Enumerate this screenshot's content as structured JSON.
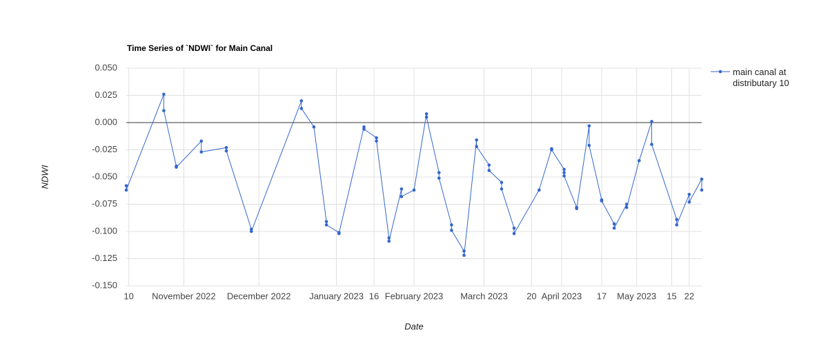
{
  "chart_data": {
    "type": "line",
    "title": "Time Series of `NDWI` for Main Canal",
    "x_label": "Date",
    "y_label": "NDWI",
    "x": [
      "2022-10-09",
      "2022-10-09",
      "2022-10-24",
      "2022-10-24",
      "2022-10-29",
      "2022-10-29",
      "2022-11-08",
      "2022-11-08",
      "2022-11-18",
      "2022-11-18",
      "2022-11-28",
      "2022-11-28",
      "2022-12-18",
      "2022-12-18",
      "2022-12-23",
      "2022-12-28",
      "2022-12-28",
      "2023-01-02",
      "2023-01-02",
      "2023-01-12",
      "2023-01-12",
      "2023-01-17",
      "2023-01-17",
      "2023-01-22",
      "2023-01-22",
      "2023-01-27",
      "2023-01-27",
      "2023-02-01",
      "2023-02-06",
      "2023-02-06",
      "2023-02-11",
      "2023-02-11",
      "2023-02-16",
      "2023-02-16",
      "2023-02-21",
      "2023-02-21",
      "2023-02-26",
      "2023-02-26",
      "2023-03-03",
      "2023-03-03",
      "2023-03-08",
      "2023-03-08",
      "2023-03-13",
      "2023-03-13",
      "2023-03-23",
      "2023-03-28",
      "2023-03-28",
      "2023-04-02",
      "2023-04-02",
      "2023-04-02",
      "2023-04-07",
      "2023-04-07",
      "2023-04-12",
      "2023-04-12",
      "2023-04-17",
      "2023-04-17",
      "2023-04-22",
      "2023-04-22",
      "2023-04-27",
      "2023-04-27",
      "2023-05-02",
      "2023-05-07",
      "2023-05-07",
      "2023-05-17",
      "2023-05-17",
      "2023-05-22",
      "2023-05-22",
      "2023-05-27",
      "2023-05-27"
    ],
    "series": [
      {
        "name": "main canal at distributary 10",
        "color": "#3366cc",
        "values": [
          -0.058,
          -0.062,
          0.026,
          0.011,
          -0.04,
          -0.041,
          -0.017,
          -0.027,
          -0.023,
          -0.026,
          -0.098,
          -0.1,
          0.02,
          0.013,
          -0.004,
          -0.091,
          -0.094,
          -0.101,
          -0.102,
          -0.004,
          -0.006,
          -0.014,
          -0.017,
          -0.106,
          -0.109,
          -0.061,
          -0.068,
          -0.062,
          0.008,
          0.005,
          -0.046,
          -0.051,
          -0.094,
          -0.099,
          -0.118,
          -0.122,
          -0.016,
          -0.022,
          -0.039,
          -0.044,
          -0.055,
          -0.061,
          -0.097,
          -0.102,
          -0.062,
          -0.024,
          -0.025,
          -0.043,
          -0.046,
          -0.049,
          -0.078,
          -0.079,
          -0.003,
          -0.021,
          -0.071,
          -0.072,
          -0.093,
          -0.097,
          -0.075,
          -0.078,
          -0.035,
          0.001,
          -0.02,
          -0.089,
          -0.094,
          -0.066,
          -0.073,
          -0.052,
          -0.062
        ]
      }
    ],
    "xlim": [
      "2022-10-09",
      "2023-05-27"
    ],
    "xticks": [
      {
        "value": "2022-10-10",
        "label": "10"
      },
      {
        "value": "2022-11-01",
        "label": "November 2022"
      },
      {
        "value": "2022-12-01",
        "label": "December 2022"
      },
      {
        "value": "2023-01-01",
        "label": "January 2023"
      },
      {
        "value": "2023-01-16",
        "label": "16"
      },
      {
        "value": "2023-02-01",
        "label": "February 2023"
      },
      {
        "value": "2023-03-01",
        "label": "March 2023"
      },
      {
        "value": "2023-03-20",
        "label": "20"
      },
      {
        "value": "2023-04-01",
        "label": "April 2023"
      },
      {
        "value": "2023-04-17",
        "label": "17"
      },
      {
        "value": "2023-05-01",
        "label": "May 2023"
      },
      {
        "value": "2023-05-15",
        "label": "15"
      },
      {
        "value": "2023-05-22",
        "label": "22"
      }
    ],
    "ylim": [
      -0.15,
      0.05
    ],
    "yticks": [
      {
        "value": -0.15,
        "label": "-0.150"
      },
      {
        "value": -0.125,
        "label": "-0.125"
      },
      {
        "value": -0.1,
        "label": "-0.100"
      },
      {
        "value": -0.075,
        "label": "-0.075"
      },
      {
        "value": -0.05,
        "label": "-0.050"
      },
      {
        "value": -0.025,
        "label": "-0.025"
      },
      {
        "value": 0,
        "label": "0.000"
      },
      {
        "value": 0.025,
        "label": "0.025"
      },
      {
        "value": 0.05,
        "label": "0.050"
      }
    ],
    "grid": true,
    "legend": "right"
  }
}
